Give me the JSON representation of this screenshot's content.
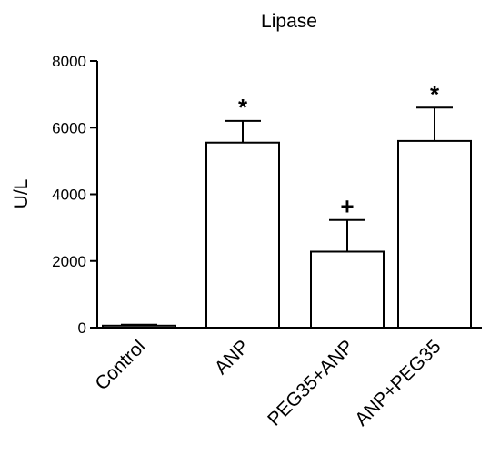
{
  "chart_data": {
    "type": "bar",
    "title": "Lipase",
    "ylabel": "U/L",
    "xlabel": "",
    "ylim": [
      0,
      8000
    ],
    "yticks": [
      0,
      2000,
      4000,
      6000,
      8000
    ],
    "categories": [
      "Control",
      "ANP",
      "PEG35+ANP",
      "ANP+PEG35"
    ],
    "values": [
      60,
      5550,
      2280,
      5600
    ],
    "errors": [
      30,
      650,
      950,
      1000
    ],
    "annotations": [
      "",
      "*",
      "+",
      "*"
    ],
    "grid": false,
    "legend": "none",
    "bar_fill": "#ffffff",
    "bar_stroke": "#000000"
  }
}
